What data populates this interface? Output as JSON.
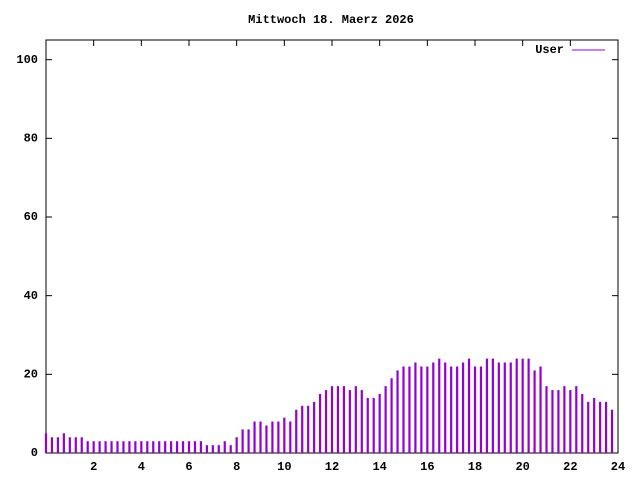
{
  "chart_data": {
    "type": "impulse",
    "title": "Mittwoch 18. Maerz 2026",
    "xlim": [
      0,
      24
    ],
    "xticks": [
      2,
      4,
      6,
      8,
      10,
      12,
      14,
      16,
      18,
      20,
      22,
      24
    ],
    "ylim": [
      0,
      105
    ],
    "yticks": [
      0,
      20,
      40,
      60,
      80,
      100
    ],
    "x": [
      0,
      0.25,
      0.5,
      0.75,
      1,
      1.25,
      1.5,
      1.75,
      2,
      2.25,
      2.5,
      2.75,
      3,
      3.25,
      3.5,
      3.75,
      4,
      4.25,
      4.5,
      4.75,
      5,
      5.25,
      5.5,
      5.75,
      6,
      6.25,
      6.5,
      6.75,
      7,
      7.25,
      7.5,
      7.75,
      8,
      8.25,
      8.5,
      8.75,
      9,
      9.25,
      9.5,
      9.75,
      10,
      10.25,
      10.5,
      10.75,
      11,
      11.25,
      11.5,
      11.75,
      12,
      12.25,
      12.5,
      12.75,
      13,
      13.25,
      13.5,
      13.75,
      14,
      14.25,
      14.5,
      14.75,
      15,
      15.25,
      15.5,
      15.75,
      16,
      16.25,
      16.5,
      16.75,
      17,
      17.25,
      17.5,
      17.75,
      18,
      18.25,
      18.5,
      18.75,
      19,
      19.25,
      19.5,
      19.75,
      20,
      20.25,
      20.5,
      20.75,
      21,
      21.25,
      21.5,
      21.75,
      22,
      22.25,
      22.5,
      22.75,
      23,
      23.25,
      23.5,
      23.75
    ],
    "series": [
      {
        "name": "User",
        "color": "#9400d3",
        "values": [
          5,
          4,
          4,
          5,
          4,
          4,
          4,
          3,
          3,
          3,
          3,
          3,
          3,
          3,
          3,
          3,
          3,
          3,
          3,
          3,
          3,
          3,
          3,
          3,
          3,
          3,
          3,
          2,
          2,
          2,
          3,
          2,
          4,
          6,
          6,
          8,
          8,
          7,
          8,
          8,
          9,
          8,
          11,
          12,
          12,
          13,
          15,
          16,
          17,
          17,
          17,
          16,
          17,
          16,
          14,
          14,
          15,
          17,
          19,
          21,
          22,
          22,
          23,
          22,
          22,
          23,
          24,
          23,
          22,
          22,
          23,
          24,
          22,
          22,
          24,
          24,
          23,
          23,
          23,
          24,
          24,
          24,
          21,
          22,
          17,
          16,
          16,
          17,
          16,
          17,
          15,
          13,
          14,
          13,
          13,
          11
        ]
      }
    ],
    "legend": "top-right"
  }
}
